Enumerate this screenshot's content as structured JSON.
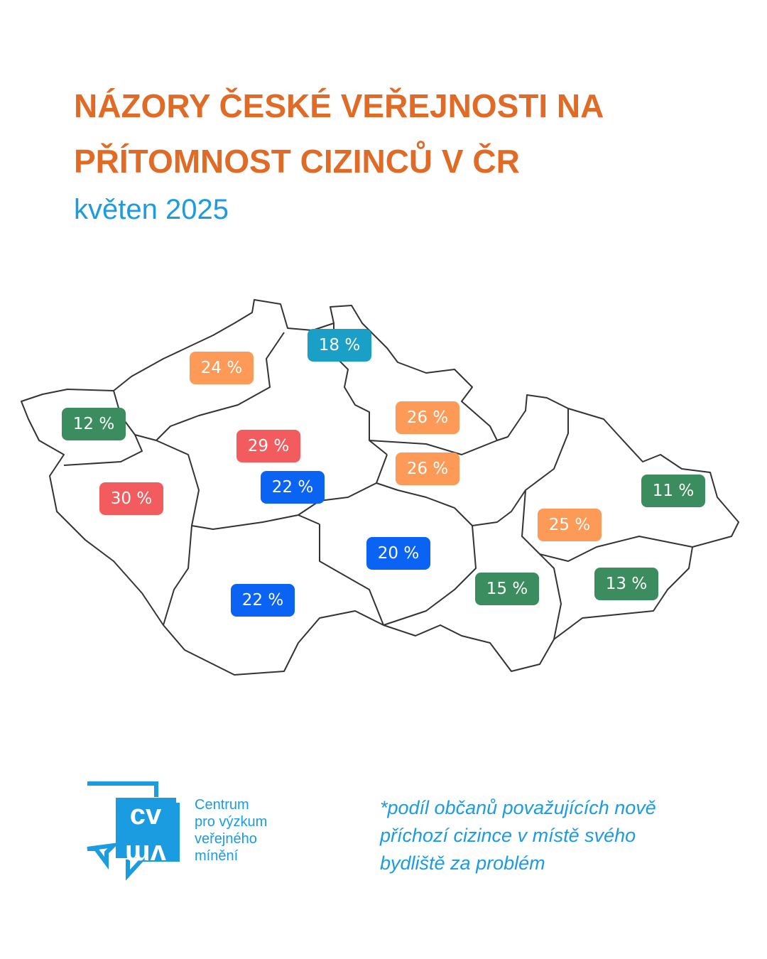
{
  "header": {
    "title_lines": [
      "NÁZORY ČESKÉ VEŘEJNOSTI NA",
      "PŘÍTOMNOST CIZINCŮ V ČR"
    ],
    "subtitle": "květen 2025"
  },
  "map": {
    "labels": [
      {
        "text": "18 %",
        "color": "#1a9fc6"
      },
      {
        "text": "24 %",
        "color": "#fd9a57"
      },
      {
        "text": "12 %",
        "color": "#3b8d5f"
      },
      {
        "text": "26 %",
        "color": "#fd9a57"
      },
      {
        "text": "29 %",
        "color": "#f25c5e"
      },
      {
        "text": "26 %",
        "color": "#fd9a57"
      },
      {
        "text": "22 %",
        "color": "#0b63f3"
      },
      {
        "text": "30 %",
        "color": "#f25c5e"
      },
      {
        "text": "11 %",
        "color": "#3b8d5f"
      },
      {
        "text": "25 %",
        "color": "#fd9a57"
      },
      {
        "text": "20 %",
        "color": "#0b63f3"
      },
      {
        "text": "15 %",
        "color": "#3b8d5f"
      },
      {
        "text": "13 %",
        "color": "#3b8d5f"
      },
      {
        "text": "22 %",
        "color": "#0b63f3"
      }
    ]
  },
  "logo": {
    "mark": [
      "cv",
      "vm"
    ],
    "name_lines": [
      "Centrum",
      "pro výzkum",
      "veřejného",
      "mínění"
    ]
  },
  "footnote_lines": [
    "*podíl občanů považujících nově",
    "příchozí cizince v místě svého",
    "bydliště za problém"
  ]
}
